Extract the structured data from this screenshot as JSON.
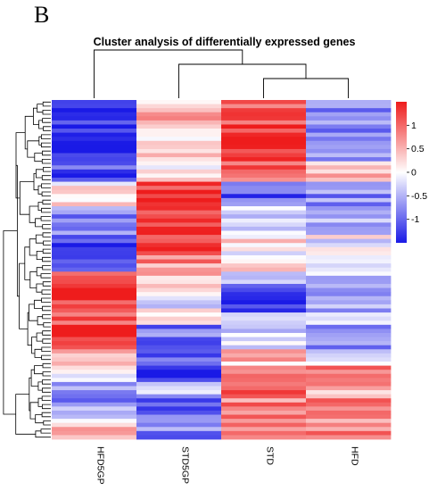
{
  "figure": {
    "panel_letter": "B",
    "title": "Cluster analysis of differentially expressed genes"
  },
  "chart_data": {
    "type": "heatmap",
    "title": "Cluster analysis of differentially expressed genes",
    "columns": [
      "HFD5GP",
      "STD5GP",
      "STD",
      "HFD"
    ],
    "value_range": [
      -1.5,
      1.5
    ],
    "colorscale": {
      "low": "#1a1ae6",
      "mid": "#ffffff",
      "high": "#ee1c1c",
      "ticks": [
        1,
        0.5,
        0,
        -0.5,
        -1
      ],
      "tick_labels": [
        "1",
        "0.5",
        "0",
        "-0.5",
        "-1"
      ]
    },
    "column_dendrogram": "((HFD5GP),((STD5GP),(STD,HFD)))",
    "row_blocks": [
      {
        "rows": 8,
        "values": [
          -1.4,
          0.5,
          1.2,
          -0.8
        ]
      },
      {
        "rows": 7,
        "values": [
          -1.4,
          0.35,
          1.3,
          -0.7
        ]
      },
      {
        "rows": 5,
        "values": [
          -1.1,
          0.0,
          0.9,
          0.3
        ]
      },
      {
        "rows": 6,
        "values": [
          0.1,
          1.4,
          -1.0,
          -0.8
        ]
      },
      {
        "rows": 7,
        "values": [
          -0.9,
          1.4,
          -0.4,
          -0.4
        ]
      },
      {
        "rows": 5,
        "values": [
          -1.3,
          1.3,
          0.1,
          -0.1
        ]
      },
      {
        "rows": 4,
        "values": [
          -1.0,
          0.7,
          0.2,
          -0.5
        ]
      },
      {
        "rows": 4,
        "values": [
          1.3,
          0.5,
          -0.6,
          -0.3
        ]
      },
      {
        "rows": 6,
        "values": [
          1.4,
          -0.1,
          -1.2,
          -0.5
        ]
      },
      {
        "rows": 3,
        "values": [
          0.9,
          0.1,
          -0.6,
          -0.5
        ]
      },
      {
        "rows": 6,
        "values": [
          1.5,
          -0.9,
          -0.3,
          -0.6
        ]
      },
      {
        "rows": 4,
        "values": [
          0.4,
          -0.9,
          0.4,
          -0.2
        ]
      },
      {
        "rows": 4,
        "values": [
          0.1,
          -1.4,
          0.9,
          1.1
        ]
      },
      {
        "rows": 4,
        "values": [
          -0.5,
          -0.4,
          1.0,
          0.6
        ]
      },
      {
        "rows": 4,
        "values": [
          -0.7,
          -0.9,
          0.8,
          1.0
        ]
      },
      {
        "rows": 3,
        "values": [
          -0.2,
          -0.6,
          0.7,
          0.6
        ]
      },
      {
        "rows": 3,
        "values": [
          0.7,
          -0.8,
          1.0,
          0.8
        ]
      }
    ]
  }
}
